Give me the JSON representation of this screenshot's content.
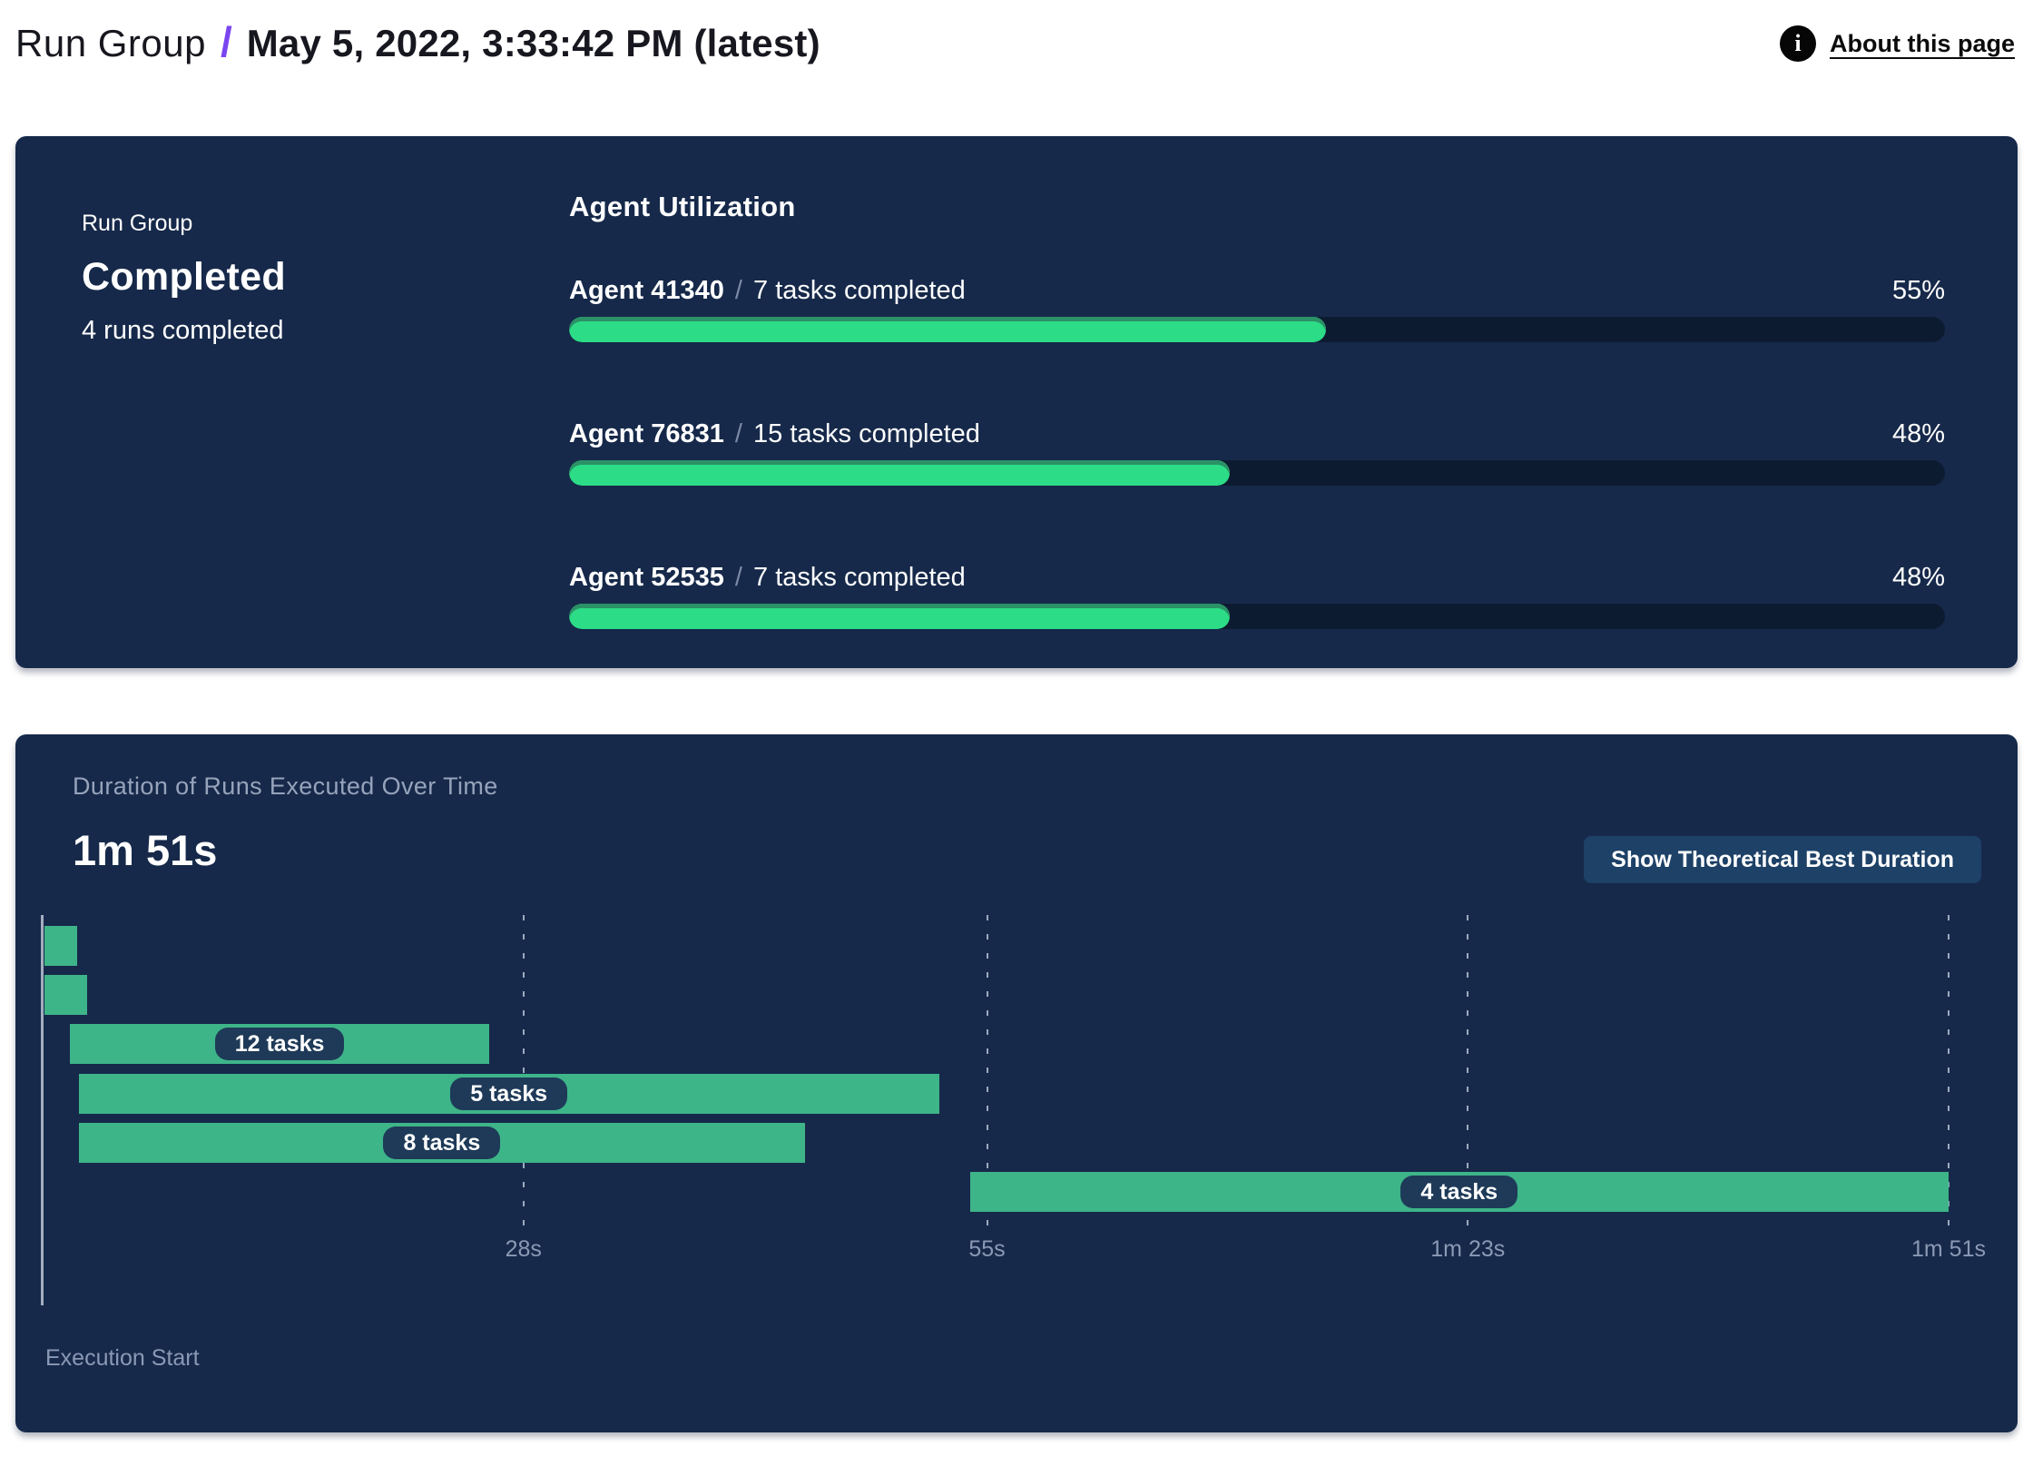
{
  "header": {
    "breadcrumb_root": "Run Group",
    "separator": "/",
    "title": "May 5, 2022, 3:33:42 PM (latest)",
    "info_icon_glyph": "i",
    "about_link": "About this page"
  },
  "summary_panel": {
    "label": "Run Group",
    "status": "Completed",
    "subtitle": "4 runs completed",
    "utilization": {
      "title": "Agent Utilization",
      "agents": [
        {
          "name": "Agent 41340",
          "slash": "/",
          "tasks": "7 tasks completed",
          "percent": 55,
          "percent_label": "55%"
        },
        {
          "name": "Agent 76831",
          "slash": "/",
          "tasks": "15 tasks completed",
          "percent": 48,
          "percent_label": "48%"
        },
        {
          "name": "Agent 52535",
          "slash": "/",
          "tasks": "7 tasks completed",
          "percent": 48,
          "percent_label": "48%"
        }
      ]
    }
  },
  "duration_panel": {
    "title": "Duration of Runs Executed Over Time",
    "total": "1m 51s",
    "button_label": "Show Theoretical Best Duration",
    "axis_label": "Execution Start"
  },
  "chart_data": {
    "type": "gantt",
    "title": "Duration of Runs Executed Over Time",
    "total_duration": "1m 51s",
    "x_unit": "seconds",
    "x_max": 111,
    "grid": "dashed-vertical",
    "ticks": [
      {
        "label": "28s",
        "s": 28
      },
      {
        "label": "55s",
        "s": 55
      },
      {
        "label": "1m 23s",
        "s": 83
      },
      {
        "label": "1m 51s",
        "s": 111
      }
    ],
    "bars": [
      {
        "label": "",
        "start_s": 0.1,
        "end_s": 2.0
      },
      {
        "label": "",
        "start_s": 0.1,
        "end_s": 2.6
      },
      {
        "label": "12 tasks",
        "start_s": 1.6,
        "end_s": 26.0
      },
      {
        "label": "5 tasks",
        "start_s": 2.1,
        "end_s": 52.2
      },
      {
        "label": "8 tasks",
        "start_s": 2.1,
        "end_s": 44.4
      },
      {
        "label": "4 tasks",
        "start_s": 54.0,
        "end_s": 111.0
      }
    ],
    "colors": {
      "bar": "#3eb489",
      "pill_bg": "#1e3a58",
      "gridline": "#b2c0d6",
      "tick_text": "#8b99b5"
    }
  },
  "colors": {
    "accent_purple": "#7a45f0",
    "panel_bg": "#16294a",
    "progress_fill": "#2cdc86",
    "progress_rim": "#2b9166",
    "progress_track": "#0d1b31",
    "button_bg": "#1d4167",
    "muted_text": "#8b99b5",
    "header_text": "#17171f"
  }
}
